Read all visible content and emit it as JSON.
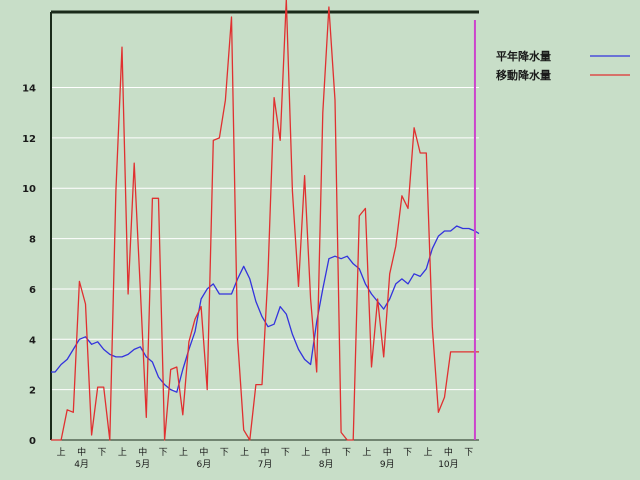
{
  "chart_data": {
    "type": "line",
    "ylim": [
      0,
      17
    ],
    "yticks": [
      0,
      2,
      4,
      6,
      8,
      10,
      12,
      14
    ],
    "grid": true,
    "legend_position": "top-right",
    "x_sub_labels": [
      "上",
      "中",
      "下"
    ],
    "months": [
      "4月",
      "5月",
      "6月",
      "7月",
      "8月",
      "9月",
      "10月"
    ],
    "x_range": [
      0,
      211
    ],
    "colors": {
      "平年降水量": "#3333dd",
      "移動降水量": "#e03030",
      "marker": "#cc44cc"
    },
    "marker_x": 209,
    "series": [
      {
        "name": "平年降水量",
        "x": [
          0,
          2,
          5,
          8,
          11,
          14,
          17,
          20,
          23,
          26,
          29,
          32,
          35,
          38,
          41,
          44,
          47,
          50,
          53,
          56,
          59,
          62,
          65,
          68,
          71,
          74,
          77,
          80,
          83,
          86,
          89,
          92,
          95,
          98,
          101,
          104,
          107,
          110,
          113,
          116,
          119,
          122,
          125,
          128,
          131,
          134,
          137,
          140,
          143,
          146,
          149,
          152,
          155,
          158,
          161,
          164,
          167,
          170,
          173,
          176,
          179,
          182,
          185,
          188,
          191,
          194,
          197,
          200,
          203,
          206,
          209,
          211
        ],
        "values": [
          2.7,
          2.7,
          3.0,
          3.2,
          3.6,
          4.0,
          4.1,
          3.8,
          3.9,
          3.6,
          3.4,
          3.3,
          3.3,
          3.4,
          3.6,
          3.7,
          3.3,
          3.1,
          2.5,
          2.2,
          2.0,
          1.9,
          2.8,
          3.6,
          4.3,
          5.6,
          6.0,
          6.2,
          5.8,
          5.8,
          5.8,
          6.4,
          6.9,
          6.4,
          5.5,
          4.9,
          4.5,
          4.6,
          5.3,
          5.0,
          4.2,
          3.6,
          3.2,
          3.0,
          4.7,
          6.0,
          7.2,
          7.3,
          7.2,
          7.3,
          7.0,
          6.8,
          6.2,
          5.8,
          5.5,
          5.2,
          5.6,
          6.2,
          6.4,
          6.2,
          6.6,
          6.5,
          6.8,
          7.6,
          8.1,
          8.3,
          8.3,
          8.5,
          8.4,
          8.4,
          8.3,
          8.2
        ]
      },
      {
        "name": "移動降水量",
        "x": [
          0,
          2,
          5,
          8,
          11,
          14,
          17,
          20,
          23,
          26,
          29,
          32,
          35,
          38,
          41,
          44,
          47,
          50,
          53,
          56,
          59,
          62,
          65,
          68,
          71,
          74,
          77,
          80,
          83,
          86,
          89,
          92,
          95,
          98,
          101,
          104,
          107,
          110,
          113,
          116,
          119,
          122,
          125,
          128,
          131,
          134,
          137,
          140,
          143,
          146,
          149,
          152,
          155,
          158,
          161,
          164,
          167,
          170,
          173,
          176,
          179,
          182,
          185,
          188,
          191,
          194,
          197,
          200,
          203,
          206,
          209,
          211
        ],
        "values": [
          0,
          0,
          0,
          1.2,
          1.1,
          6.3,
          5.4,
          0.2,
          2.1,
          2.1,
          0,
          9.9,
          15.6,
          5.8,
          11.0,
          6.0,
          0.9,
          9.6,
          9.6,
          0,
          2.8,
          2.9,
          1.0,
          3.9,
          4.8,
          5.3,
          2.0,
          11.9,
          12.0,
          13.5,
          16.8,
          4.0,
          0.4,
          0,
          2.2,
          2.2,
          6.6,
          13.6,
          11.9,
          17.5,
          9.9,
          6.1,
          10.5,
          5.6,
          2.7,
          13.0,
          17.2,
          13.5,
          0.3,
          0,
          0,
          8.9,
          9.2,
          2.9,
          5.6,
          3.3,
          6.6,
          7.7,
          9.7,
          9.2,
          12.4,
          11.4,
          11.4,
          4.5,
          1.1,
          1.7,
          3.5,
          3.5,
          3.5,
          3.5,
          3.5,
          3.5
        ]
      }
    ]
  }
}
